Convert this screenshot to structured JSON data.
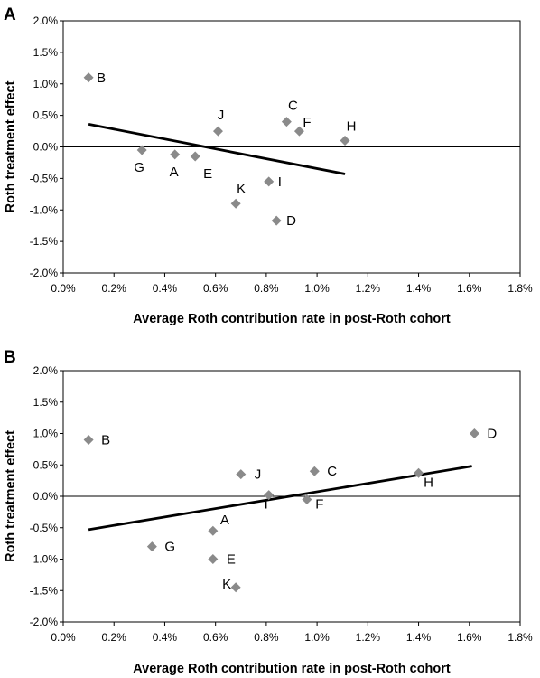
{
  "chart_data": [
    {
      "type": "scatter",
      "panel_label": "A",
      "xlabel": "Average Roth contribution rate in post-Roth cohort",
      "ylabel": "Roth treatment effect",
      "xlim": [
        0.0,
        1.8
      ],
      "ylim": [
        -2.0,
        2.0
      ],
      "x_ticks": [
        "0.0%",
        "0.2%",
        "0.4%",
        "0.6%",
        "0.8%",
        "1.0%",
        "1.2%",
        "1.4%",
        "1.6%",
        "1.8%"
      ],
      "y_ticks": [
        "-2.0%",
        "-1.5%",
        "-1.0%",
        "-0.5%",
        "0.0%",
        "0.5%",
        "1.0%",
        "1.5%",
        "2.0%"
      ],
      "grid": false,
      "zero_line": true,
      "marker": "diamond",
      "marker_color": "#8a8a8a",
      "points": [
        {
          "label": "B",
          "x": 0.1,
          "y": 1.1
        },
        {
          "label": "G",
          "x": 0.31,
          "y": -0.05
        },
        {
          "label": "A",
          "x": 0.44,
          "y": -0.12
        },
        {
          "label": "E",
          "x": 0.52,
          "y": -0.15
        },
        {
          "label": "J",
          "x": 0.61,
          "y": 0.25
        },
        {
          "label": "K",
          "x": 0.68,
          "y": -0.9
        },
        {
          "label": "I",
          "x": 0.81,
          "y": -0.55
        },
        {
          "label": "D",
          "x": 0.84,
          "y": -1.17
        },
        {
          "label": "C",
          "x": 0.88,
          "y": 0.4
        },
        {
          "label": "F",
          "x": 0.93,
          "y": 0.25
        },
        {
          "label": "H",
          "x": 1.11,
          "y": 0.1
        }
      ],
      "trendline": {
        "x": [
          0.1,
          1.11
        ],
        "y": [
          0.36,
          -0.43
        ]
      }
    },
    {
      "type": "scatter",
      "panel_label": "B",
      "xlabel": "Average Roth contribution rate in post-Roth cohort",
      "ylabel": "Roth treatment effect",
      "xlim": [
        0.0,
        1.8
      ],
      "ylim": [
        -2.0,
        2.0
      ],
      "x_ticks": [
        "0.0%",
        "0.2%",
        "0.4%",
        "0.6%",
        "0.8%",
        "1.0%",
        "1.2%",
        "1.4%",
        "1.6%",
        "1.8%"
      ],
      "y_ticks": [
        "-2.0%",
        "-1.5%",
        "-1.0%",
        "-0.5%",
        "0.0%",
        "0.5%",
        "1.0%",
        "1.5%",
        "2.0%"
      ],
      "grid": false,
      "zero_line": true,
      "marker": "diamond",
      "marker_color": "#8a8a8a",
      "points": [
        {
          "label": "B",
          "x": 0.1,
          "y": 0.9
        },
        {
          "label": "G",
          "x": 0.35,
          "y": -0.8
        },
        {
          "label": "A",
          "x": 0.59,
          "y": -0.55
        },
        {
          "label": "E",
          "x": 0.59,
          "y": -1.0
        },
        {
          "label": "K",
          "x": 0.68,
          "y": -1.45
        },
        {
          "label": "J",
          "x": 0.7,
          "y": 0.35
        },
        {
          "label": "I",
          "x": 0.81,
          "y": 0.02
        },
        {
          "label": "F",
          "x": 0.96,
          "y": -0.05
        },
        {
          "label": "C",
          "x": 0.99,
          "y": 0.4
        },
        {
          "label": "H",
          "x": 1.4,
          "y": 0.37
        },
        {
          "label": "D",
          "x": 1.62,
          "y": 1.0
        }
      ],
      "trendline": {
        "x": [
          0.1,
          1.61
        ],
        "y": [
          -0.53,
          0.48
        ]
      }
    }
  ]
}
